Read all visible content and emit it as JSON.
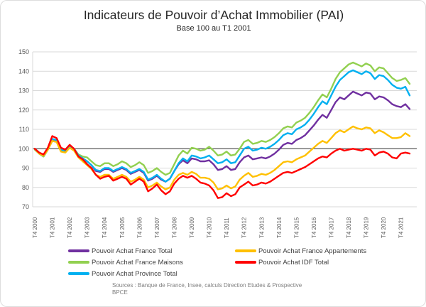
{
  "header": {
    "title": "Indicateurs de Pouvoir d’Achat Immobilier (PAI)",
    "subtitle": "Base 100 au T1 2001"
  },
  "source": {
    "line1": "Sources : Banque de France, Insee, calculs Direction Etudes & Prospective",
    "line2": "BPCE"
  },
  "chart_data": {
    "type": "line",
    "title": "Indicateurs de Pouvoir d’Achat Immobilier (PAI)",
    "subtitle": "Base 100 au T1 2001",
    "x_unit": "quarter",
    "x_start": "T4 2000",
    "x_end": "T2 2022",
    "x_tick_every": 4,
    "x_tick_labels": [
      "T4 2000",
      "T4 2001",
      "T4 2002",
      "T4 2003",
      "T4 2004",
      "T4 2005",
      "T4 2006",
      "T4 2007",
      "T4 2008",
      "T4 2009",
      "T4 2010",
      "T4 2011",
      "T4 2012",
      "T4 2013",
      "T4 2014",
      "T4 2015",
      "T4 2016",
      "T4 2017",
      "T4 2018",
      "T4 2019",
      "T4 2020",
      "T4 2021"
    ],
    "ylim": [
      70,
      150
    ],
    "y_ticks": [
      70,
      80,
      90,
      100,
      110,
      120,
      130,
      140,
      150
    ],
    "baseline": 100,
    "grid": "horizontal",
    "gridline_color": "#d9d9d9",
    "baseline_color": "#595959",
    "legend_position": "bottom",
    "series": [
      {
        "name": "Pouvoir Achat France Total",
        "color": "#7030A0",
        "values": [
          100,
          97.5,
          96,
          99.5,
          104.5,
          104,
          99,
          98.5,
          101,
          99.5,
          96.5,
          95,
          93.5,
          91.5,
          88.5,
          88,
          89.5,
          89.5,
          88,
          89,
          90,
          89,
          87,
          88,
          89,
          87.5,
          83.5,
          84.5,
          86,
          84,
          83,
          84.5,
          88.5,
          92,
          94,
          92.5,
          95,
          94.5,
          93.5,
          93.5,
          94,
          92,
          89,
          89.5,
          91,
          89,
          89.5,
          93,
          95.5,
          96.5,
          94.5,
          95,
          95.5,
          95,
          96,
          97.5,
          99.5,
          102,
          103,
          102.5,
          104.5,
          105.5,
          107,
          109.5,
          112,
          115,
          117.5,
          116,
          120,
          124,
          126.5,
          125.5,
          127.5,
          129.5,
          128.5,
          127.5,
          129,
          128.5,
          125.5,
          127,
          126.5,
          125,
          123,
          122,
          121.5,
          123,
          120.5
        ]
      },
      {
        "name": "Pouvoir Achat France Maisons",
        "color": "#92D050",
        "values": [
          99.5,
          97.5,
          96,
          99.5,
          104,
          103.5,
          99.5,
          99,
          101.5,
          100,
          97,
          96,
          95.5,
          93.5,
          91.5,
          91,
          92.5,
          92.5,
          91,
          92,
          93.5,
          92.5,
          90.5,
          91.5,
          93,
          91.5,
          87.5,
          88.5,
          90,
          88,
          86.5,
          87.5,
          92,
          96.5,
          99,
          97.5,
          100.5,
          100,
          99,
          99.5,
          101,
          99,
          96.5,
          97,
          98.5,
          96.5,
          97,
          100,
          103.5,
          104.5,
          102.5,
          103,
          104,
          103.5,
          104.5,
          106,
          108,
          110.5,
          111.5,
          111,
          113.5,
          114.5,
          116,
          118.5,
          121.5,
          125,
          128,
          126.5,
          131,
          136,
          139.5,
          141.5,
          143.5,
          144.5,
          143.5,
          142.5,
          144,
          143,
          140,
          142,
          141.5,
          139,
          136.5,
          135,
          135.5,
          136.5,
          133.5
        ]
      },
      {
        "name": "Pouvoir Achat Province Total",
        "color": "#00B0F0",
        "values": [
          100,
          98,
          96.5,
          100,
          105,
          104.5,
          99.5,
          99,
          101.5,
          100,
          96.5,
          95,
          93.5,
          91.5,
          89,
          88.5,
          90,
          90,
          88.5,
          89.5,
          90.5,
          89.5,
          87.5,
          88.5,
          89.5,
          88,
          84,
          85,
          86.5,
          84.5,
          83,
          84.5,
          88.5,
          92.5,
          95,
          93.5,
          96.5,
          96,
          95,
          95.5,
          96.5,
          94.5,
          92.5,
          93,
          94.5,
          92.5,
          93,
          96.5,
          100,
          101,
          99,
          99.5,
          100.5,
          100,
          101,
          102.5,
          104.5,
          107,
          108,
          107.5,
          110,
          111,
          112.5,
          115,
          118,
          121.5,
          124.5,
          123,
          127.5,
          132,
          135.5,
          137.5,
          139.5,
          140.5,
          139.5,
          138.5,
          140,
          139,
          136,
          138,
          137.5,
          135.5,
          133,
          131.5,
          131,
          132,
          127.5
        ]
      },
      {
        "name": "Pouvoir Achat France Appartements",
        "color": "#FFC000",
        "values": [
          100,
          97.5,
          96.5,
          99.5,
          104,
          103.5,
          98.5,
          98,
          100.5,
          99,
          95.5,
          93.5,
          91.5,
          89.5,
          86.5,
          85.5,
          86.5,
          86.5,
          84.5,
          85.5,
          86.5,
          85.5,
          83,
          84,
          85.5,
          84,
          80,
          81,
          82.5,
          80.5,
          79,
          80,
          84,
          86.5,
          87.5,
          86.5,
          88,
          87,
          85,
          85,
          84.5,
          82.5,
          79,
          79.5,
          81,
          79.5,
          80.5,
          84,
          86,
          87.5,
          85.5,
          86,
          87,
          86.5,
          87.5,
          89,
          91,
          93,
          93.5,
          93,
          94.5,
          95.5,
          96.5,
          98.5,
          100.5,
          102.5,
          104,
          103,
          105.5,
          108,
          109.5,
          108.5,
          110,
          111.5,
          110.5,
          110,
          111,
          110.5,
          108,
          109.5,
          108.5,
          107,
          105.5,
          105.5,
          106,
          108,
          106.5
        ]
      },
      {
        "name": "Pouvoir Achat IDF Total",
        "color": "#FF0000",
        "values": [
          100,
          98,
          97,
          100.5,
          106.5,
          105.5,
          100.5,
          99.5,
          102,
          100,
          96,
          94.5,
          92,
          90,
          86.5,
          84.5,
          85.5,
          86,
          83.5,
          84.5,
          85.5,
          84.5,
          81.5,
          83,
          84.5,
          83,
          78,
          79.5,
          81.5,
          78.5,
          76.5,
          78,
          82,
          84.5,
          86,
          85,
          86,
          84.5,
          82.5,
          82,
          81,
          78.5,
          74.5,
          75,
          77,
          75.5,
          76.5,
          80,
          81.5,
          83,
          81,
          81.5,
          82.5,
          82,
          83,
          84.5,
          86,
          87.5,
          88,
          87.5,
          88.5,
          89.5,
          90.5,
          92,
          93.5,
          95,
          96,
          95.5,
          97.5,
          99,
          100,
          99,
          99.5,
          100,
          99.5,
          99,
          100,
          99.5,
          96.5,
          98,
          98.5,
          97.5,
          95.5,
          95,
          97.5,
          98,
          97.5
        ]
      }
    ],
    "legend_columns": [
      [
        0,
        1,
        2
      ],
      [
        3,
        4
      ]
    ]
  }
}
